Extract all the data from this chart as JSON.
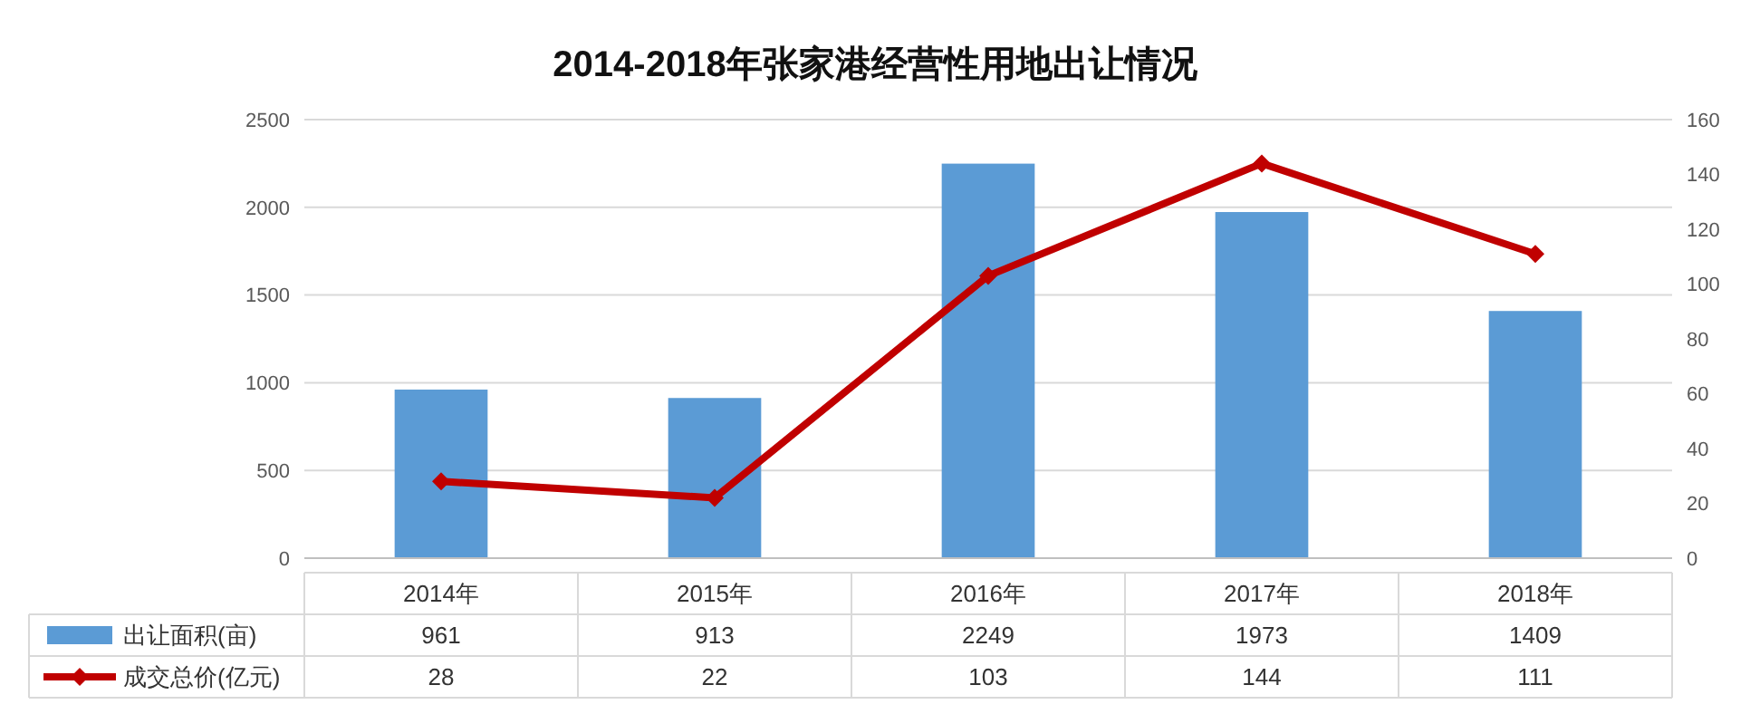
{
  "chart_data": {
    "type": "bar",
    "title": "2014-2018年张家港经营性用地出让情况",
    "categories": [
      "2014年",
      "2015年",
      "2016年",
      "2017年",
      "2018年"
    ],
    "series": [
      {
        "name": "出让面积(亩)",
        "color": "#5b9bd5",
        "values": [
          961,
          913,
          2249,
          1973,
          1409
        ]
      },
      {
        "name": "成交总价(亿元)",
        "type": "line",
        "axis": "y2",
        "color": "#c00000",
        "values": [
          28,
          22,
          103,
          144,
          111
        ]
      }
    ],
    "ylim": [
      0,
      2500
    ],
    "yticks": [
      0,
      500,
      1000,
      1500,
      2000,
      2500
    ],
    "y2lim": [
      0,
      160
    ],
    "y2ticks": [
      0,
      20,
      40,
      60,
      80,
      100,
      120,
      140,
      160
    ],
    "grid": "y",
    "legend": "bottom",
    "marker": "diamond",
    "line_style": "solid",
    "data_labels": true
  }
}
